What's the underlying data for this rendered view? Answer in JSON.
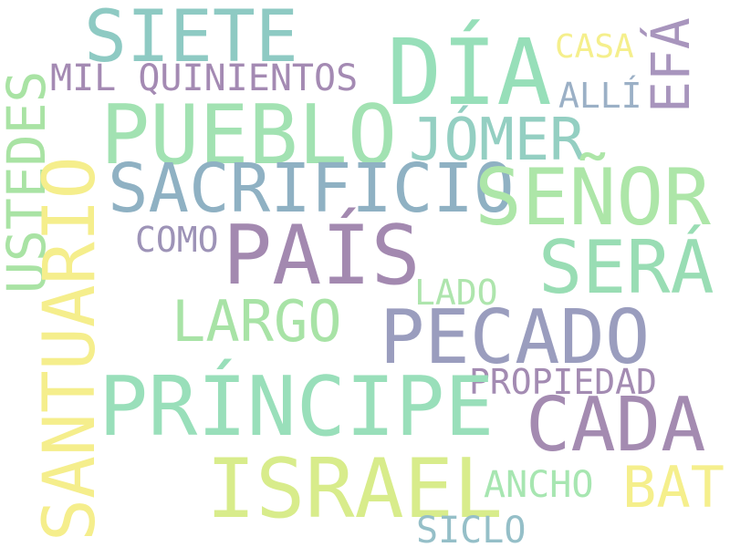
{
  "words": [
    {
      "text": "SIETE",
      "color": "#8ecac3"
    },
    {
      "text": "DÍA",
      "color": "#97dfb9"
    },
    {
      "text": "EFÁ",
      "color": "#a895bd"
    },
    {
      "text": "CASA",
      "color": "#f5ef8c"
    },
    {
      "text": "MIL QUINIENTOS",
      "color": "#a48ab3"
    },
    {
      "text": "ALLÍ",
      "color": "#9bb0c6"
    },
    {
      "text": "USTEDES",
      "color": "#a9e3a4"
    },
    {
      "text": "PUEBLO",
      "color": "#a2e2b2"
    },
    {
      "text": "JÓMER",
      "color": "#94cfc2"
    },
    {
      "text": "SACRIFICIO",
      "color": "#8fb1c3"
    },
    {
      "text": "SEÑOR",
      "color": "#ade6a8"
    },
    {
      "text": "SANTUARIO",
      "color": "#f5ee8c"
    },
    {
      "text": "COMO",
      "color": "#9d93b7"
    },
    {
      "text": "PAÍS",
      "color": "#a389b0"
    },
    {
      "text": "SERÁ",
      "color": "#99ddb4"
    },
    {
      "text": "LADO",
      "color": "#aee5ad"
    },
    {
      "text": "LARGO",
      "color": "#a8e3a6"
    },
    {
      "text": "PECADO",
      "color": "#9a9dbe"
    },
    {
      "text": "PROPIEDAD",
      "color": "#a38bb2"
    },
    {
      "text": "PRÍNCIPE",
      "color": "#99dfba"
    },
    {
      "text": "CADA",
      "color": "#a48bb1"
    },
    {
      "text": "ISRAEL",
      "color": "#d8ec8b"
    },
    {
      "text": "ANCHO",
      "color": "#a7e6b1"
    },
    {
      "text": "BAT",
      "color": "#f5ef8c"
    },
    {
      "text": "SICLO",
      "color": "#95bfc8"
    }
  ]
}
